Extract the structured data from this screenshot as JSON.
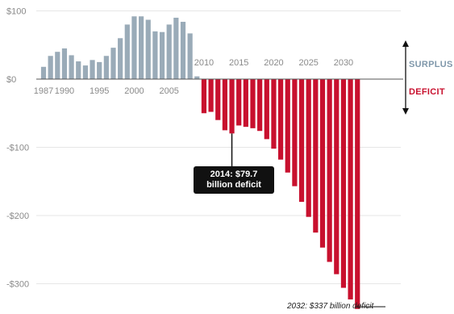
{
  "chart_data": {
    "type": "bar",
    "x": [
      1987,
      1988,
      1989,
      1990,
      1991,
      1992,
      1993,
      1994,
      1995,
      1996,
      1997,
      1998,
      1999,
      2000,
      2001,
      2002,
      2003,
      2004,
      2005,
      2006,
      2007,
      2008,
      2009,
      2010,
      2011,
      2012,
      2013,
      2014,
      2015,
      2016,
      2017,
      2018,
      2019,
      2020,
      2021,
      2022,
      2023,
      2024,
      2025,
      2026,
      2027,
      2028,
      2029,
      2030,
      2031,
      2032
    ],
    "values": [
      18,
      34,
      40,
      45,
      35,
      26,
      20,
      28,
      25,
      34,
      46,
      60,
      80,
      92,
      92,
      87,
      70,
      69,
      80,
      90,
      84,
      67,
      4,
      -50,
      -48,
      -60,
      -75,
      -79.7,
      -68,
      -70,
      -72,
      -76,
      -88,
      -102,
      -118,
      -137,
      -157,
      -180,
      -202,
      -225,
      -247,
      -268,
      -286,
      -306,
      -323,
      -337
    ],
    "y_ticks": [
      {
        "value": 100,
        "label": "$100"
      },
      {
        "value": 0,
        "label": "$0"
      },
      {
        "value": -100,
        "label": "-$100"
      },
      {
        "value": -200,
        "label": "-$200"
      },
      {
        "value": -300,
        "label": "-$300"
      }
    ],
    "x_ticks_upper": [
      "2010",
      "2015",
      "2020",
      "2025",
      "2030"
    ],
    "x_ticks_lower": [
      "1987",
      "1990",
      "1995",
      "2000",
      "2005"
    ],
    "ylim": [
      -340,
      100
    ],
    "colors": {
      "surplus": "#9aabb8",
      "deficit": "#c8102e",
      "axis": "#555555",
      "grid": "#e6e6e6"
    },
    "legend": {
      "surplus": "SURPLUS",
      "deficit": "DEFICIT"
    },
    "annotations": {
      "callout_line1": "2014: $79.7",
      "callout_line2": "billion deficit",
      "final_note": "2032: $337 billion deficit"
    }
  }
}
